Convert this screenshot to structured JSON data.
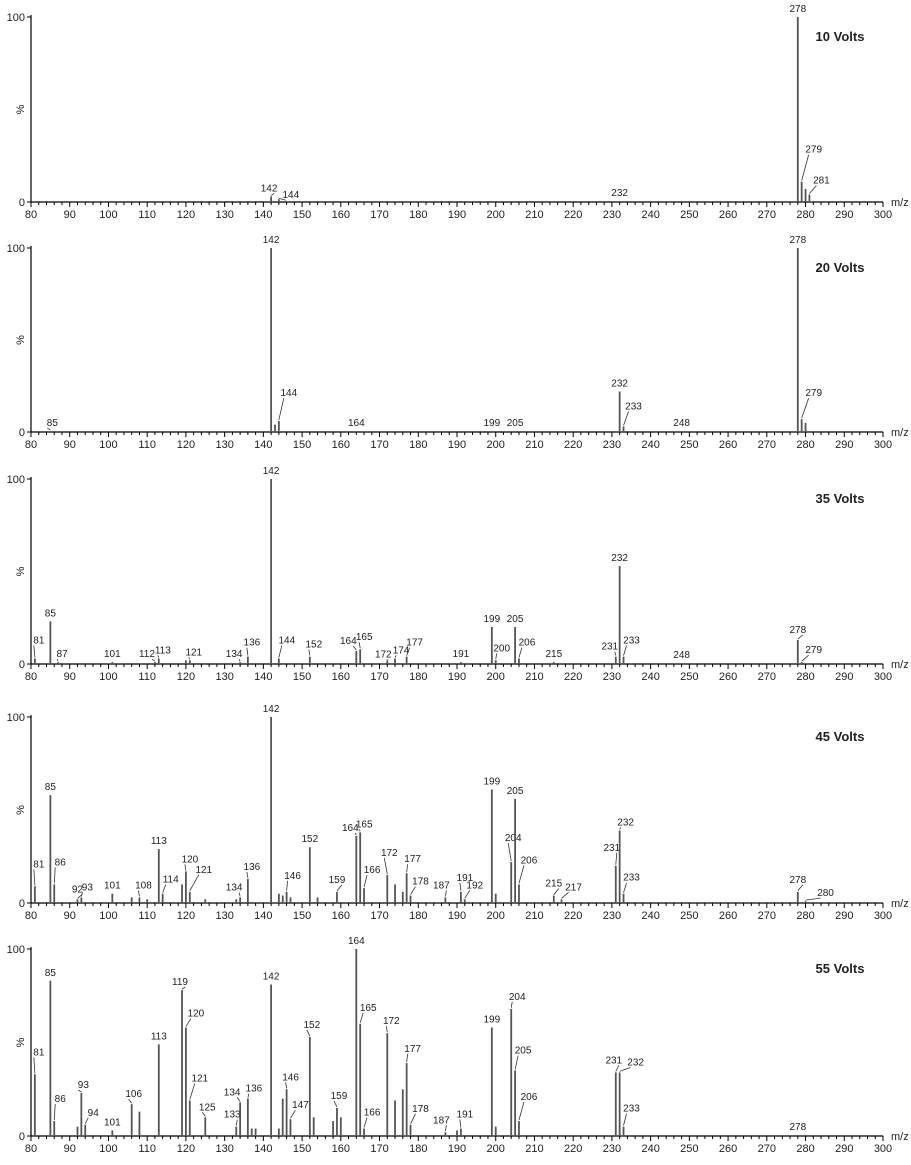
{
  "chart_data": [
    {
      "type": "bar",
      "title": "10 Volts",
      "xlabel": "m/z",
      "ylabel": "%",
      "xlim": [
        80,
        300
      ],
      "ylim": [
        0,
        100
      ],
      "xticks": [
        80,
        90,
        100,
        110,
        120,
        130,
        140,
        150,
        160,
        170,
        180,
        190,
        200,
        210,
        220,
        230,
        240,
        250,
        260,
        270,
        280,
        290,
        300
      ],
      "yticks": [
        0,
        100
      ],
      "peaks": [
        {
          "mz": 142,
          "intensity": 3,
          "label": "142"
        },
        {
          "mz": 144,
          "intensity": 1.5,
          "label": "144"
        },
        {
          "mz": 232,
          "intensity": 0.5,
          "label": "232"
        },
        {
          "mz": 278,
          "intensity": 100,
          "label": "278"
        },
        {
          "mz": 279,
          "intensity": 11,
          "label": "279"
        },
        {
          "mz": 281,
          "intensity": 4,
          "label": "281"
        },
        {
          "mz": 280,
          "intensity": 7
        }
      ]
    },
    {
      "type": "bar",
      "title": "20 Volts",
      "xlabel": "m/z",
      "ylabel": "%",
      "xlim": [
        80,
        300
      ],
      "ylim": [
        0,
        100
      ],
      "xticks": [
        80,
        90,
        100,
        110,
        120,
        130,
        140,
        150,
        160,
        170,
        180,
        190,
        200,
        210,
        220,
        230,
        240,
        250,
        260,
        270,
        280,
        290,
        300
      ],
      "yticks": [
        0,
        100
      ],
      "peaks": [
        {
          "mz": 85,
          "intensity": 0.5,
          "label": "85"
        },
        {
          "mz": 142,
          "intensity": 100,
          "label": "142"
        },
        {
          "mz": 143,
          "intensity": 4
        },
        {
          "mz": 144,
          "intensity": 6,
          "label": "144"
        },
        {
          "mz": 164,
          "intensity": 0.5,
          "label": "164"
        },
        {
          "mz": 199,
          "intensity": 0.5,
          "label": "199"
        },
        {
          "mz": 205,
          "intensity": 0.5,
          "label": "205"
        },
        {
          "mz": 232,
          "intensity": 22,
          "label": "232"
        },
        {
          "mz": 233,
          "intensity": 3,
          "label": "233"
        },
        {
          "mz": 248,
          "intensity": 0.5,
          "label": "248"
        },
        {
          "mz": 278,
          "intensity": 100,
          "label": "278"
        },
        {
          "mz": 279,
          "intensity": 7,
          "label": "279"
        },
        {
          "mz": 280,
          "intensity": 5
        }
      ]
    },
    {
      "type": "bar",
      "title": "35 Volts",
      "xlabel": "m/z",
      "ylabel": "%",
      "xlim": [
        80,
        300
      ],
      "ylim": [
        0,
        100
      ],
      "xticks": [
        80,
        90,
        100,
        110,
        120,
        130,
        140,
        150,
        160,
        170,
        180,
        190,
        200,
        210,
        220,
        230,
        240,
        250,
        260,
        270,
        280,
        290,
        300
      ],
      "yticks": [
        0,
        100
      ],
      "peaks": [
        {
          "mz": 81,
          "intensity": 3,
          "label": "81"
        },
        {
          "mz": 85,
          "intensity": 23,
          "label": "85"
        },
        {
          "mz": 87,
          "intensity": 1,
          "label": "87"
        },
        {
          "mz": 101,
          "intensity": 1,
          "label": "101"
        },
        {
          "mz": 112,
          "intensity": 1,
          "label": "112"
        },
        {
          "mz": 113,
          "intensity": 3,
          "label": "113"
        },
        {
          "mz": 120,
          "intensity": 2
        },
        {
          "mz": 121,
          "intensity": 2,
          "label": "121"
        },
        {
          "mz": 134,
          "intensity": 1,
          "label": "134"
        },
        {
          "mz": 136,
          "intensity": 4,
          "label": "136"
        },
        {
          "mz": 142,
          "intensity": 100,
          "label": "142"
        },
        {
          "mz": 144,
          "intensity": 3,
          "label": "144"
        },
        {
          "mz": 152,
          "intensity": 4,
          "label": "152"
        },
        {
          "mz": 164,
          "intensity": 7,
          "label": "164"
        },
        {
          "mz": 165,
          "intensity": 8,
          "label": "165"
        },
        {
          "mz": 172,
          "intensity": 2,
          "label": "172"
        },
        {
          "mz": 174,
          "intensity": 3,
          "label": "174"
        },
        {
          "mz": 177,
          "intensity": 4,
          "label": "177"
        },
        {
          "mz": 191,
          "intensity": 1,
          "label": "191"
        },
        {
          "mz": 199,
          "intensity": 20,
          "label": "199"
        },
        {
          "mz": 200,
          "intensity": 2,
          "label": "200"
        },
        {
          "mz": 205,
          "intensity": 20,
          "label": "205"
        },
        {
          "mz": 206,
          "intensity": 3,
          "label": "206"
        },
        {
          "mz": 215,
          "intensity": 1,
          "label": "215"
        },
        {
          "mz": 231,
          "intensity": 4,
          "label": "231"
        },
        {
          "mz": 232,
          "intensity": 53,
          "label": "232"
        },
        {
          "mz": 233,
          "intensity": 4,
          "label": "233"
        },
        {
          "mz": 248,
          "intensity": 0.5,
          "label": "248"
        },
        {
          "mz": 278,
          "intensity": 13,
          "label": "278"
        },
        {
          "mz": 279,
          "intensity": 1,
          "label": "279"
        }
      ]
    },
    {
      "type": "bar",
      "title": "45 Volts",
      "xlabel": "m/z",
      "ylabel": "%",
      "xlim": [
        80,
        300
      ],
      "ylim": [
        0,
        100
      ],
      "xticks": [
        80,
        90,
        100,
        110,
        120,
        130,
        140,
        150,
        160,
        170,
        180,
        190,
        200,
        210,
        220,
        230,
        240,
        250,
        260,
        270,
        280,
        290,
        300
      ],
      "yticks": [
        0,
        100
      ],
      "peaks": [
        {
          "mz": 81,
          "intensity": 9,
          "label": "81"
        },
        {
          "mz": 85,
          "intensity": 58,
          "label": "85"
        },
        {
          "mz": 86,
          "intensity": 10,
          "label": "86"
        },
        {
          "mz": 92,
          "intensity": 2,
          "label": "92"
        },
        {
          "mz": 93,
          "intensity": 3,
          "label": "93"
        },
        {
          "mz": 101,
          "intensity": 5,
          "label": "101"
        },
        {
          "mz": 106,
          "intensity": 3
        },
        {
          "mz": 108,
          "intensity": 3,
          "label": "108"
        },
        {
          "mz": 110,
          "intensity": 2
        },
        {
          "mz": 113,
          "intensity": 29,
          "label": "113"
        },
        {
          "mz": 114,
          "intensity": 5,
          "label": "114"
        },
        {
          "mz": 119,
          "intensity": 10
        },
        {
          "mz": 120,
          "intensity": 17,
          "label": "120"
        },
        {
          "mz": 121,
          "intensity": 6,
          "label": "121"
        },
        {
          "mz": 125,
          "intensity": 2
        },
        {
          "mz": 133,
          "intensity": 2
        },
        {
          "mz": 134,
          "intensity": 3,
          "label": "134"
        },
        {
          "mz": 136,
          "intensity": 13,
          "label": "136"
        },
        {
          "mz": 142,
          "intensity": 100,
          "label": "142"
        },
        {
          "mz": 144,
          "intensity": 5
        },
        {
          "mz": 145,
          "intensity": 4
        },
        {
          "mz": 146,
          "intensity": 6,
          "label": "146"
        },
        {
          "mz": 147,
          "intensity": 3
        },
        {
          "mz": 152,
          "intensity": 30,
          "label": "152"
        },
        {
          "mz": 154,
          "intensity": 3
        },
        {
          "mz": 159,
          "intensity": 6,
          "label": "159"
        },
        {
          "mz": 164,
          "intensity": 36,
          "label": "164"
        },
        {
          "mz": 165,
          "intensity": 38,
          "label": "165"
        },
        {
          "mz": 166,
          "intensity": 8,
          "label": "166"
        },
        {
          "mz": 172,
          "intensity": 15,
          "label": "172"
        },
        {
          "mz": 174,
          "intensity": 10
        },
        {
          "mz": 176,
          "intensity": 6
        },
        {
          "mz": 177,
          "intensity": 16,
          "label": "177"
        },
        {
          "mz": 178,
          "intensity": 4,
          "label": "178"
        },
        {
          "mz": 187,
          "intensity": 3,
          "label": "187"
        },
        {
          "mz": 191,
          "intensity": 6,
          "label": "191"
        },
        {
          "mz": 192,
          "intensity": 2,
          "label": "192"
        },
        {
          "mz": 199,
          "intensity": 61,
          "label": "199"
        },
        {
          "mz": 200,
          "intensity": 5
        },
        {
          "mz": 204,
          "intensity": 22,
          "label": "204"
        },
        {
          "mz": 205,
          "intensity": 56,
          "label": "205"
        },
        {
          "mz": 206,
          "intensity": 10,
          "label": "206"
        },
        {
          "mz": 215,
          "intensity": 4,
          "label": "215"
        },
        {
          "mz": 217,
          "intensity": 2,
          "label": "217"
        },
        {
          "mz": 231,
          "intensity": 20,
          "label": "231"
        },
        {
          "mz": 232,
          "intensity": 39,
          "label": "232"
        },
        {
          "mz": 233,
          "intensity": 5,
          "label": "233"
        },
        {
          "mz": 278,
          "intensity": 6,
          "label": "278"
        },
        {
          "mz": 280,
          "intensity": 1,
          "label": "280"
        }
      ]
    },
    {
      "type": "bar",
      "title": "55 Volts",
      "xlabel": "m/z",
      "ylabel": "%",
      "xlim": [
        80,
        300
      ],
      "ylim": [
        0,
        100
      ],
      "xticks": [
        80,
        90,
        100,
        110,
        120,
        130,
        140,
        150,
        160,
        170,
        180,
        190,
        200,
        210,
        220,
        230,
        240,
        250,
        260,
        270,
        280,
        290,
        300
      ],
      "yticks": [
        0,
        100
      ],
      "peaks": [
        {
          "mz": 81,
          "intensity": 33,
          "label": "81"
        },
        {
          "mz": 85,
          "intensity": 83,
          "label": "85"
        },
        {
          "mz": 86,
          "intensity": 8,
          "label": "86"
        },
        {
          "mz": 92,
          "intensity": 5
        },
        {
          "mz": 93,
          "intensity": 23,
          "label": "93"
        },
        {
          "mz": 94,
          "intensity": 6,
          "label": "94"
        },
        {
          "mz": 101,
          "intensity": 3,
          "label": "101"
        },
        {
          "mz": 106,
          "intensity": 17,
          "label": "106"
        },
        {
          "mz": 108,
          "intensity": 13
        },
        {
          "mz": 113,
          "intensity": 49,
          "label": "113"
        },
        {
          "mz": 119,
          "intensity": 78,
          "label": "119"
        },
        {
          "mz": 120,
          "intensity": 58,
          "label": "120"
        },
        {
          "mz": 121,
          "intensity": 19,
          "label": "121"
        },
        {
          "mz": 125,
          "intensity": 10,
          "label": "125"
        },
        {
          "mz": 133,
          "intensity": 5,
          "label": "133"
        },
        {
          "mz": 134,
          "intensity": 18,
          "label": "134"
        },
        {
          "mz": 136,
          "intensity": 20,
          "label": "136"
        },
        {
          "mz": 137,
          "intensity": 4
        },
        {
          "mz": 138,
          "intensity": 4
        },
        {
          "mz": 142,
          "intensity": 81,
          "label": "142"
        },
        {
          "mz": 144,
          "intensity": 4
        },
        {
          "mz": 145,
          "intensity": 20
        },
        {
          "mz": 146,
          "intensity": 25,
          "label": "146"
        },
        {
          "mz": 147,
          "intensity": 9,
          "label": "147"
        },
        {
          "mz": 152,
          "intensity": 53,
          "label": "152"
        },
        {
          "mz": 153,
          "intensity": 10
        },
        {
          "mz": 158,
          "intensity": 8
        },
        {
          "mz": 159,
          "intensity": 15,
          "label": "159"
        },
        {
          "mz": 160,
          "intensity": 10
        },
        {
          "mz": 164,
          "intensity": 100,
          "label": "164"
        },
        {
          "mz": 165,
          "intensity": 60,
          "label": "165"
        },
        {
          "mz": 166,
          "intensity": 4,
          "label": "166"
        },
        {
          "mz": 172,
          "intensity": 55,
          "label": "172"
        },
        {
          "mz": 174,
          "intensity": 19
        },
        {
          "mz": 176,
          "intensity": 25
        },
        {
          "mz": 177,
          "intensity": 39,
          "label": "177"
        },
        {
          "mz": 178,
          "intensity": 6,
          "label": "178"
        },
        {
          "mz": 187,
          "intensity": 2,
          "label": "187"
        },
        {
          "mz": 190,
          "intensity": 3
        },
        {
          "mz": 191,
          "intensity": 4,
          "label": "191"
        },
        {
          "mz": 199,
          "intensity": 58,
          "label": "199"
        },
        {
          "mz": 200,
          "intensity": 5
        },
        {
          "mz": 204,
          "intensity": 68,
          "label": "204"
        },
        {
          "mz": 205,
          "intensity": 35,
          "label": "205"
        },
        {
          "mz": 206,
          "intensity": 8,
          "label": "206"
        },
        {
          "mz": 231,
          "intensity": 34,
          "label": "231"
        },
        {
          "mz": 232,
          "intensity": 34,
          "label": "232"
        },
        {
          "mz": 233,
          "intensity": 5,
          "label": "233"
        },
        {
          "mz": 278,
          "intensity": 0.5,
          "label": "278"
        }
      ]
    }
  ]
}
